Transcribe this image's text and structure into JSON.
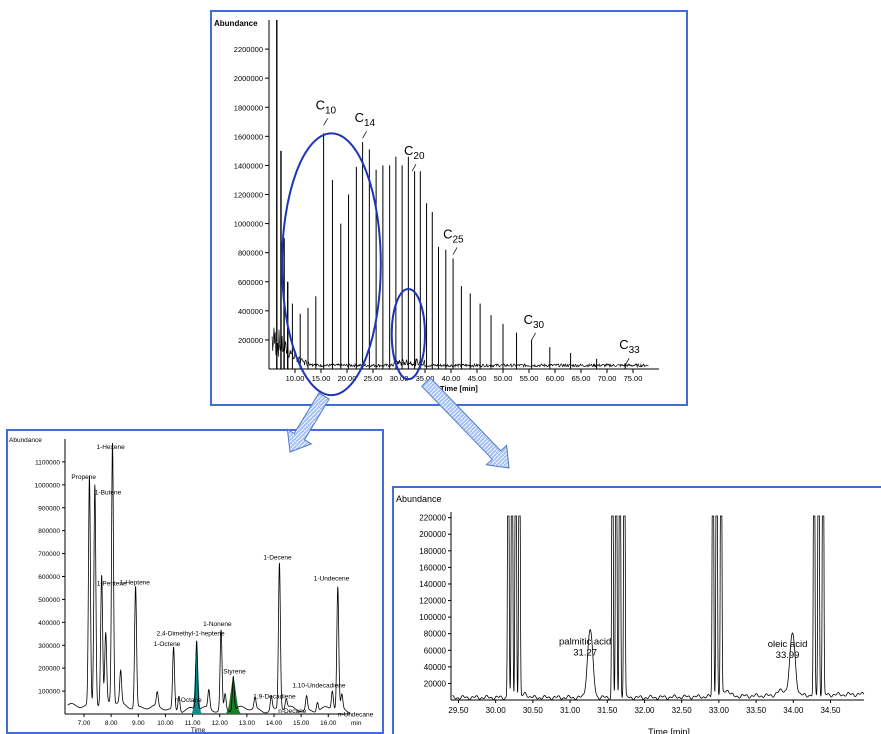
{
  "colors": {
    "frame": "#3f6fd6",
    "ellipse": "#1f35b8",
    "arrow_fill": "#a9c4f0",
    "arrow_stroke": "#4f78d0",
    "trace": "#000000",
    "peak_teal": "#0e8c8c",
    "peak_green": "#1f7a2a"
  },
  "chart_data": [
    {
      "id": "main",
      "type": "line",
      "ylabel": "Abundance",
      "xlabel": "Time [min]",
      "xlim": [
        5,
        80
      ],
      "ylim": [
        0,
        2400000
      ],
      "xticks": [
        "10.00",
        "15.00",
        "20.00",
        "25.00",
        "30.00",
        "35.00",
        "40.00",
        "45.00",
        "50.00",
        "55.00",
        "60.00",
        "65.00",
        "70.00",
        "75.00"
      ],
      "xtick_values": [
        10,
        15,
        20,
        25,
        30,
        35,
        40,
        45,
        50,
        55,
        60,
        65,
        70,
        75
      ],
      "yticks": [
        "200000",
        "400000",
        "600000",
        "800000",
        "1000000",
        "1200000",
        "1400000",
        "1600000",
        "1800000",
        "2000000",
        "2200000"
      ],
      "ytick_values": [
        200000,
        400000,
        600000,
        800000,
        1000000,
        1200000,
        1400000,
        1600000,
        1800000,
        2000000,
        2200000
      ],
      "peaks": [
        {
          "x": 6.5,
          "y": 2400000
        },
        {
          "x": 7.3,
          "y": 1500000
        },
        {
          "x": 7.9,
          "y": 900000
        },
        {
          "x": 8.6,
          "y": 600000
        },
        {
          "x": 9.5,
          "y": 450000
        },
        {
          "x": 11.0,
          "y": 380000
        },
        {
          "x": 12.5,
          "y": 420000
        },
        {
          "x": 14.0,
          "y": 500000
        },
        {
          "x": 15.5,
          "y": 1620000
        },
        {
          "x": 17.2,
          "y": 1300000
        },
        {
          "x": 18.8,
          "y": 1000000
        },
        {
          "x": 20.3,
          "y": 1200000
        },
        {
          "x": 21.8,
          "y": 1390000
        },
        {
          "x": 23.0,
          "y": 1560000
        },
        {
          "x": 24.3,
          "y": 1510000
        },
        {
          "x": 25.6,
          "y": 1370000
        },
        {
          "x": 26.9,
          "y": 1400000
        },
        {
          "x": 28.2,
          "y": 1400000
        },
        {
          "x": 29.4,
          "y": 1460000
        },
        {
          "x": 30.6,
          "y": 1400000
        },
        {
          "x": 31.8,
          "y": 1460000
        },
        {
          "x": 33.0,
          "y": 1360000
        },
        {
          "x": 34.1,
          "y": 1360000
        },
        {
          "x": 35.3,
          "y": 1140000
        },
        {
          "x": 36.4,
          "y": 1080000
        },
        {
          "x": 37.6,
          "y": 840000
        },
        {
          "x": 39.0,
          "y": 820000
        },
        {
          "x": 40.4,
          "y": 760000
        },
        {
          "x": 42.0,
          "y": 570000
        },
        {
          "x": 43.7,
          "y": 520000
        },
        {
          "x": 45.6,
          "y": 450000
        },
        {
          "x": 47.7,
          "y": 370000
        },
        {
          "x": 50.0,
          "y": 310000
        },
        {
          "x": 52.6,
          "y": 250000
        },
        {
          "x": 55.5,
          "y": 200000
        },
        {
          "x": 59.0,
          "y": 150000
        },
        {
          "x": 63.0,
          "y": 110000
        },
        {
          "x": 68.0,
          "y": 70000
        },
        {
          "x": 73.5,
          "y": 40000
        }
      ],
      "annotations": [
        {
          "base": "C",
          "sub": "10",
          "x": 15.5,
          "y": 1620000
        },
        {
          "base": "C",
          "sub": "14",
          "x": 23.0,
          "y": 1560000
        },
        {
          "base": "C",
          "sub": "20",
          "x": 32.5,
          "y": 1360000
        },
        {
          "base": "C",
          "sub": "25",
          "x": 40.4,
          "y": 760000
        },
        {
          "base": "C",
          "sub": "30",
          "x": 55.5,
          "y": 200000
        },
        {
          "base": "C",
          "sub": "33",
          "x": 73.5,
          "y": 40000
        }
      ],
      "zoom_regions": [
        {
          "x_center": 17.0,
          "x_halfwidth": 9.5,
          "y_center": 720000,
          "y_halfheight": 900000
        },
        {
          "x_center": 31.8,
          "x_halfwidth": 3.2,
          "y_center": 240000,
          "y_halfheight": 310000
        }
      ]
    },
    {
      "id": "left",
      "type": "line",
      "ylabel": "Abundance",
      "xlabel": "Time",
      "x_unit": "min",
      "xlim": [
        6.3,
        16.8
      ],
      "ylim": [
        0,
        1200000
      ],
      "xticks": [
        "7.00",
        "8.00",
        "9.00",
        "10.00",
        "11.00",
        "12.00",
        "13.00",
        "14.00",
        "15.00",
        "16.00"
      ],
      "xtick_values": [
        7,
        8,
        9,
        10,
        11,
        12,
        13,
        14,
        15,
        16
      ],
      "yticks": [
        "100000",
        "200000",
        "300000",
        "400000",
        "500000",
        "600000",
        "700000",
        "800000",
        "900000",
        "1000000",
        "1100000"
      ],
      "ytick_values": [
        100000,
        200000,
        300000,
        400000,
        500000,
        600000,
        700000,
        800000,
        900000,
        1000000,
        1100000
      ],
      "peaks": [
        {
          "x": 7.2,
          "y": 1000000,
          "label": "Propene"
        },
        {
          "x": 7.4,
          "y": 970000,
          "label": "1-Butene"
        },
        {
          "x": 7.65,
          "y": 560000,
          "label": "1-Pentene"
        },
        {
          "x": 8.05,
          "y": 1140000,
          "label": "1-Hexene"
        },
        {
          "x": 8.9,
          "y": 530000,
          "label": "1-Heptene"
        },
        {
          "x": 10.3,
          "y": 270000,
          "label": "1-Octene"
        },
        {
          "x": 10.5,
          "y": 70000,
          "label": "n-Octane"
        },
        {
          "x": 11.15,
          "y": 300000,
          "label": "2,4-Dimethyl-1-heptene",
          "fill": "teal"
        },
        {
          "x": 12.05,
          "y": 350000,
          "label": "1-Nonene"
        },
        {
          "x": 12.5,
          "y": 150000,
          "label": "Styrene",
          "fill": "green"
        },
        {
          "x": 13.9,
          "y": 60000,
          "label": "1,9-Decadiene"
        },
        {
          "x": 14.2,
          "y": 640000,
          "label": "1-Decene"
        },
        {
          "x": 14.45,
          "y": 40000,
          "label": "n-Decane"
        },
        {
          "x": 16.15,
          "y": 80000,
          "label": "1,10-Undecadiene"
        },
        {
          "x": 16.35,
          "y": 530000,
          "label": "1-Undecene"
        },
        {
          "x": 16.5,
          "y": 60000,
          "label": "n-Undecane"
        }
      ]
    },
    {
      "id": "right",
      "type": "line",
      "ylabel": "Abundance",
      "xlabel": "Time [min]",
      "xlim": [
        29.4,
        34.95
      ],
      "ylim": [
        0,
        222000
      ],
      "xticks": [
        "29.50",
        "30.00",
        "30.50",
        "31.00",
        "31.50",
        "32.00",
        "32.50",
        "33.00",
        "33.50",
        "34.00",
        "34.50"
      ],
      "xtick_values": [
        29.5,
        30,
        30.5,
        31,
        31.5,
        32,
        32.5,
        33,
        33.5,
        34,
        34.5
      ],
      "yticks": [
        "20000",
        "40000",
        "60000",
        "80000",
        "100000",
        "120000",
        "140000",
        "160000",
        "180000",
        "200000",
        "220000"
      ],
      "ytick_values": [
        20000,
        40000,
        60000,
        80000,
        100000,
        120000,
        140000,
        160000,
        180000,
        200000,
        220000
      ],
      "peaks": [
        {
          "x": 30.17,
          "y": 222000
        },
        {
          "x": 30.22,
          "y": 222000
        },
        {
          "x": 30.27,
          "y": 222000
        },
        {
          "x": 30.32,
          "y": 222000
        },
        {
          "x": 31.27,
          "y": 33000
        },
        {
          "x": 31.57,
          "y": 222000
        },
        {
          "x": 31.62,
          "y": 222000
        },
        {
          "x": 31.67,
          "y": 222000
        },
        {
          "x": 31.73,
          "y": 222000
        },
        {
          "x": 32.92,
          "y": 222000
        },
        {
          "x": 32.97,
          "y": 222000
        },
        {
          "x": 33.03,
          "y": 222000
        },
        {
          "x": 33.99,
          "y": 30000
        },
        {
          "x": 34.28,
          "y": 222000
        },
        {
          "x": 34.34,
          "y": 222000
        },
        {
          "x": 34.4,
          "y": 222000
        }
      ],
      "annotations": [
        {
          "name": "palmitic acid",
          "value": "31.27",
          "x": 31.27,
          "y": 33000
        },
        {
          "name": "oleic acid",
          "value": "33.99",
          "x": 33.99,
          "y": 30000
        }
      ]
    }
  ]
}
